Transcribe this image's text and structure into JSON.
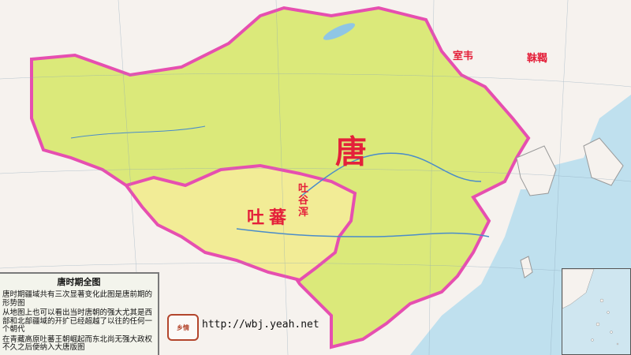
{
  "map": {
    "regions": {
      "tang": "唐",
      "tubo": "吐蕃",
      "tuyuhun": [
        "吐",
        "谷",
        "浑"
      ],
      "shiwei": "室韦",
      "mohe": "靺鞨"
    },
    "colors": {
      "sea": "#bfe0ee",
      "tang_fill": "#dbe97a",
      "tubo_fill": "#f2ec96",
      "outside_land": "#f6f2ee",
      "border_magenta": "#e64fb0",
      "label_red": "#e4203a"
    }
  },
  "legend": {
    "title": "唐时期全图",
    "paragraphs": [
      "唐时期疆域共有三次显著变化此图是唐前期的形势图",
      "从地图上也可以看出当时唐朝的强大尤其是西部和北部疆域的开扩已经超越了以往的任何一个朝代",
      "在青藏高原吐蕃王朝崛起而东北尚无强大政权不久之后便纳入大唐版图"
    ]
  },
  "seal_text": "乡情",
  "watermark": "http://wbj.yeah.net"
}
